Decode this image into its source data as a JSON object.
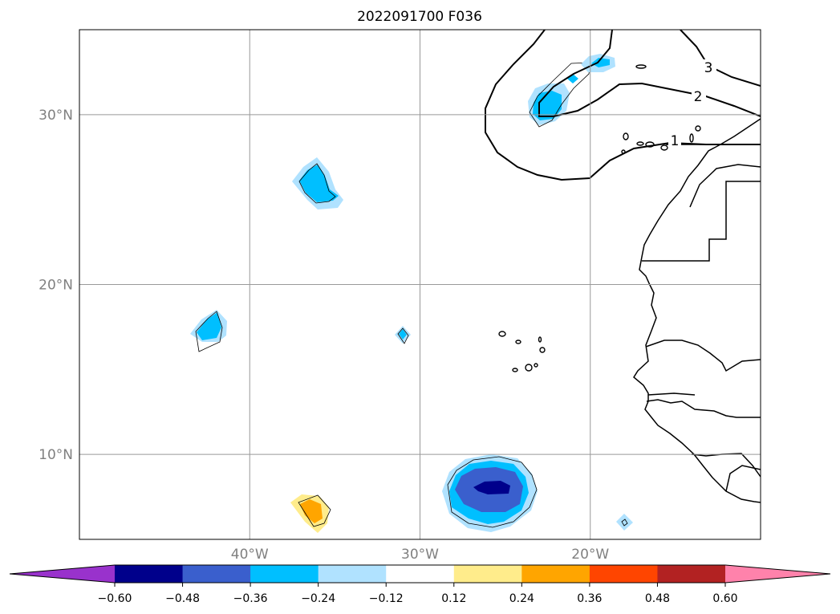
{
  "chart_data": {
    "type": "contour-map",
    "title": "2022091700 F036",
    "x_ticks": [
      {
        "lon": -40,
        "label": "40°W"
      },
      {
        "lon": -30,
        "label": "30°W"
      },
      {
        "lon": -20,
        "label": "20°W"
      }
    ],
    "y_ticks": [
      {
        "lat": 30,
        "label": "30°N"
      },
      {
        "lat": 20,
        "label": "20°N"
      },
      {
        "lat": 10,
        "label": "10°N"
      }
    ],
    "lon_range": [
      -50,
      -10
    ],
    "lat_range": [
      5,
      35
    ],
    "grid": true,
    "colorbar": {
      "orientation": "horizontal",
      "location": "bottom",
      "extend": "both",
      "levels": [
        -0.6,
        -0.48,
        -0.36,
        -0.24,
        -0.12,
        0.12,
        0.24,
        0.36,
        0.48,
        0.6
      ],
      "tick_labels": [
        "−0.60",
        "−0.48",
        "−0.36",
        "−0.24",
        "−0.12",
        "0.12",
        "0.24",
        "0.36",
        "0.48",
        "0.60"
      ],
      "colors": [
        "#9932CC",
        "#00008B",
        "#3A5FCD",
        "#00BFFF",
        "#B0E2FF",
        "#FFFFFF",
        "#FFEC8B",
        "#FFA500",
        "#FF4500",
        "#B22222",
        "#FF82AB"
      ]
    },
    "contour_labels": [
      "3",
      "2",
      "1"
    ],
    "anomaly_features": [
      {
        "lon": -36.5,
        "lat": 25.7,
        "value": -0.3
      },
      {
        "lon": -42.4,
        "lat": 17.2,
        "value": -0.3
      },
      {
        "lon": -31.0,
        "lat": 16.9,
        "value": -0.2
      },
      {
        "lon": -22.2,
        "lat": 30.4,
        "value": -0.3
      },
      {
        "lon": -20.0,
        "lat": 33.2,
        "value": -0.3
      },
      {
        "lon": -25.7,
        "lat": 7.8,
        "value": -0.55
      },
      {
        "lon": -36.0,
        "lat": 6.7,
        "value": 0.3
      },
      {
        "lon": -18.0,
        "lat": 5.9,
        "value": -0.2
      }
    ]
  }
}
